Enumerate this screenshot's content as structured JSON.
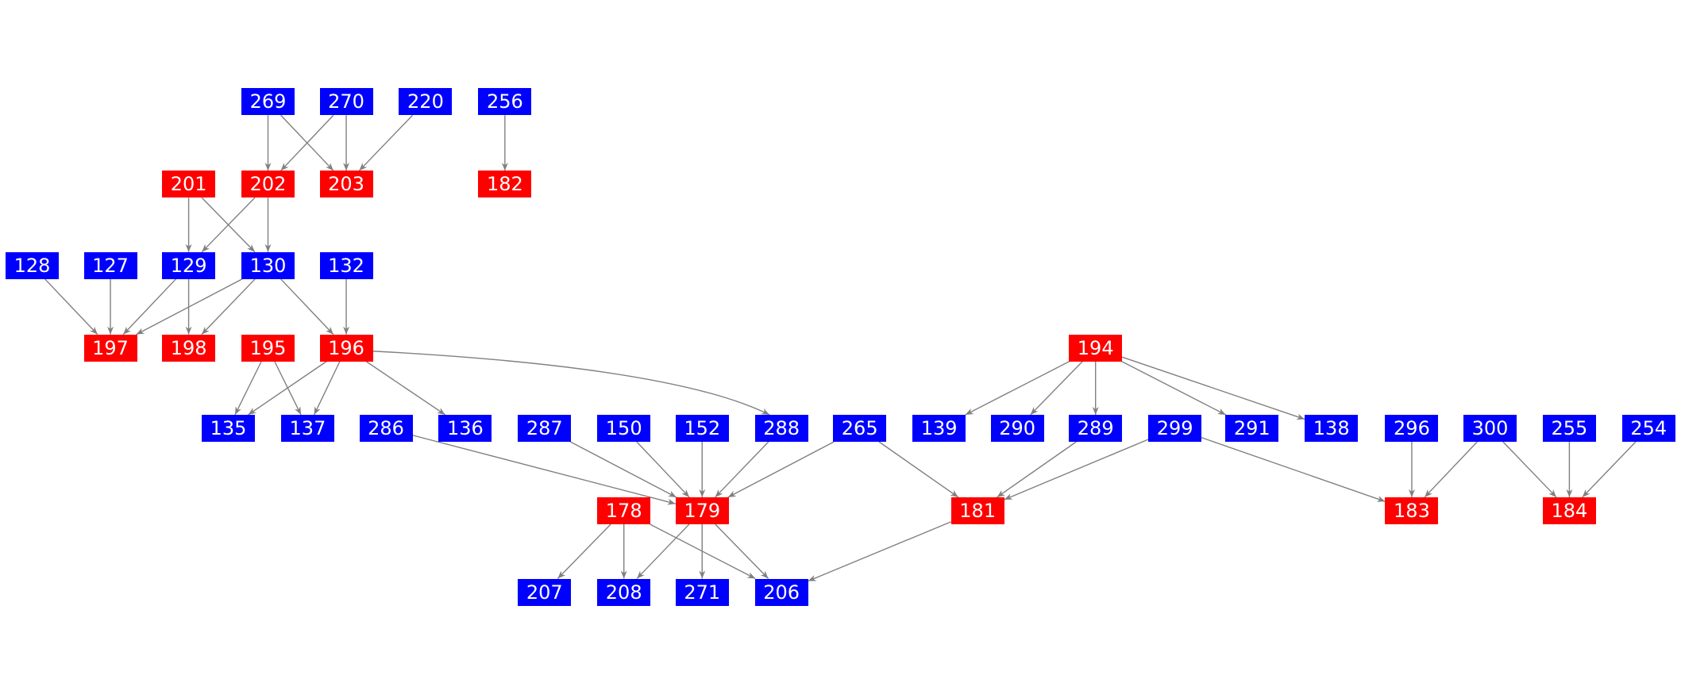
{
  "colors": {
    "red": "#ff0000",
    "blue": "#0000ff",
    "edge": "#808080",
    "text": "#ffffff"
  },
  "nodes": [
    {
      "id": "269",
      "color": "blue"
    },
    {
      "id": "270",
      "color": "blue"
    },
    {
      "id": "220",
      "color": "blue"
    },
    {
      "id": "256",
      "color": "blue"
    },
    {
      "id": "201",
      "color": "red"
    },
    {
      "id": "202",
      "color": "red"
    },
    {
      "id": "203",
      "color": "red"
    },
    {
      "id": "182",
      "color": "red"
    },
    {
      "id": "128",
      "color": "blue"
    },
    {
      "id": "127",
      "color": "blue"
    },
    {
      "id": "129",
      "color": "blue"
    },
    {
      "id": "130",
      "color": "blue"
    },
    {
      "id": "132",
      "color": "blue"
    },
    {
      "id": "197",
      "color": "red"
    },
    {
      "id": "198",
      "color": "red"
    },
    {
      "id": "195",
      "color": "red"
    },
    {
      "id": "196",
      "color": "red"
    },
    {
      "id": "194",
      "color": "red"
    },
    {
      "id": "135",
      "color": "blue"
    },
    {
      "id": "137",
      "color": "blue"
    },
    {
      "id": "286",
      "color": "blue"
    },
    {
      "id": "136",
      "color": "blue"
    },
    {
      "id": "287",
      "color": "blue"
    },
    {
      "id": "150",
      "color": "blue"
    },
    {
      "id": "152",
      "color": "blue"
    },
    {
      "id": "288",
      "color": "blue"
    },
    {
      "id": "265",
      "color": "blue"
    },
    {
      "id": "139",
      "color": "blue"
    },
    {
      "id": "290",
      "color": "blue"
    },
    {
      "id": "289",
      "color": "blue"
    },
    {
      "id": "299",
      "color": "blue"
    },
    {
      "id": "291",
      "color": "blue"
    },
    {
      "id": "138",
      "color": "blue"
    },
    {
      "id": "296",
      "color": "blue"
    },
    {
      "id": "300",
      "color": "blue"
    },
    {
      "id": "255",
      "color": "blue"
    },
    {
      "id": "254",
      "color": "blue"
    },
    {
      "id": "178",
      "color": "red"
    },
    {
      "id": "179",
      "color": "red"
    },
    {
      "id": "181",
      "color": "red"
    },
    {
      "id": "183",
      "color": "red"
    },
    {
      "id": "184",
      "color": "red"
    },
    {
      "id": "207",
      "color": "blue"
    },
    {
      "id": "208",
      "color": "blue"
    },
    {
      "id": "271",
      "color": "blue"
    },
    {
      "id": "206",
      "color": "blue"
    }
  ],
  "edges": [
    [
      "269",
      "202"
    ],
    [
      "269",
      "203"
    ],
    [
      "270",
      "202"
    ],
    [
      "270",
      "203"
    ],
    [
      "220",
      "203"
    ],
    [
      "256",
      "182"
    ],
    [
      "201",
      "129"
    ],
    [
      "201",
      "130"
    ],
    [
      "202",
      "129"
    ],
    [
      "202",
      "130"
    ],
    [
      "128",
      "197"
    ],
    [
      "127",
      "197"
    ],
    [
      "129",
      "197"
    ],
    [
      "129",
      "198"
    ],
    [
      "130",
      "197"
    ],
    [
      "130",
      "198"
    ],
    [
      "130",
      "196"
    ],
    [
      "132",
      "196"
    ],
    [
      "195",
      "135"
    ],
    [
      "195",
      "137"
    ],
    [
      "196",
      "135"
    ],
    [
      "196",
      "137"
    ],
    [
      "196",
      "136"
    ],
    [
      "196",
      "288"
    ],
    [
      "194",
      "139"
    ],
    [
      "194",
      "290"
    ],
    [
      "194",
      "289"
    ],
    [
      "194",
      "291"
    ],
    [
      "194",
      "138"
    ],
    [
      "286",
      "179"
    ],
    [
      "287",
      "179"
    ],
    [
      "150",
      "179"
    ],
    [
      "152",
      "179"
    ],
    [
      "288",
      "179"
    ],
    [
      "265",
      "179"
    ],
    [
      "265",
      "181"
    ],
    [
      "289",
      "181"
    ],
    [
      "299",
      "181"
    ],
    [
      "299",
      "183"
    ],
    [
      "296",
      "183"
    ],
    [
      "300",
      "183"
    ],
    [
      "300",
      "184"
    ],
    [
      "255",
      "184"
    ],
    [
      "254",
      "184"
    ],
    [
      "178",
      "207"
    ],
    [
      "178",
      "208"
    ],
    [
      "178",
      "206"
    ],
    [
      "179",
      "208"
    ],
    [
      "179",
      "271"
    ],
    [
      "179",
      "206"
    ],
    [
      "181",
      "206"
    ]
  ]
}
